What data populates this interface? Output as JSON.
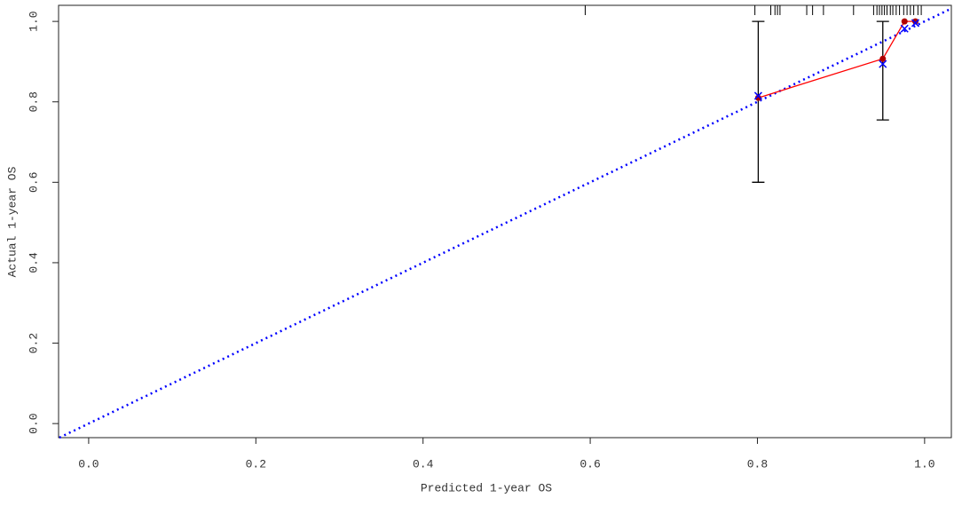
{
  "chart_data": {
    "type": "line",
    "x_label": "Predicted 1-year OS",
    "y_label": "Actual 1-year OS",
    "xlim": [
      -0.036,
      1.032
    ],
    "ylim": [
      -0.035,
      1.04
    ],
    "xticks": [
      {
        "value": 0,
        "label": "0.0"
      },
      0.2,
      0.4,
      0.6,
      0.8,
      {
        "value": 1,
        "label": "1.0"
      }
    ],
    "yticks": [
      {
        "value": 0,
        "label": "0.0"
      },
      0.2,
      0.4,
      0.6,
      0.8,
      {
        "value": 1,
        "label": "1.0"
      }
    ],
    "diagonal": true,
    "diagonal_color": "#0000ff",
    "series": [
      {
        "color": "#ff0000",
        "point_color": "#b00000",
        "marker": "circle",
        "connect": true,
        "x": [
          0.801,
          0.95,
          0.976,
          0.989
        ],
        "values": [
          0.81,
          0.907,
          1.0,
          1.0
        ]
      },
      {
        "color": "#0000ff",
        "marker": "cross",
        "connect": false,
        "x": [
          0.801,
          0.95,
          0.976,
          0.989
        ],
        "values": [
          0.815,
          0.894,
          0.982,
          0.996
        ]
      }
    ],
    "error_bars": {
      "color": "#000000",
      "x": [
        0.801,
        0.95
      ],
      "lower": [
        0.6,
        0.755
      ],
      "upper": [
        1.0,
        1.0
      ]
    },
    "rug": {
      "color": "#000000",
      "x": [
        0.594,
        0.797,
        0.816,
        0.821,
        0.824,
        0.827,
        0.859,
        0.866,
        0.879,
        0.915,
        0.939,
        0.943,
        0.946,
        0.949,
        0.952,
        0.955,
        0.959,
        0.962,
        0.966,
        0.97,
        0.975,
        0.979,
        0.983,
        0.987,
        0.992,
        0.996
      ]
    }
  }
}
